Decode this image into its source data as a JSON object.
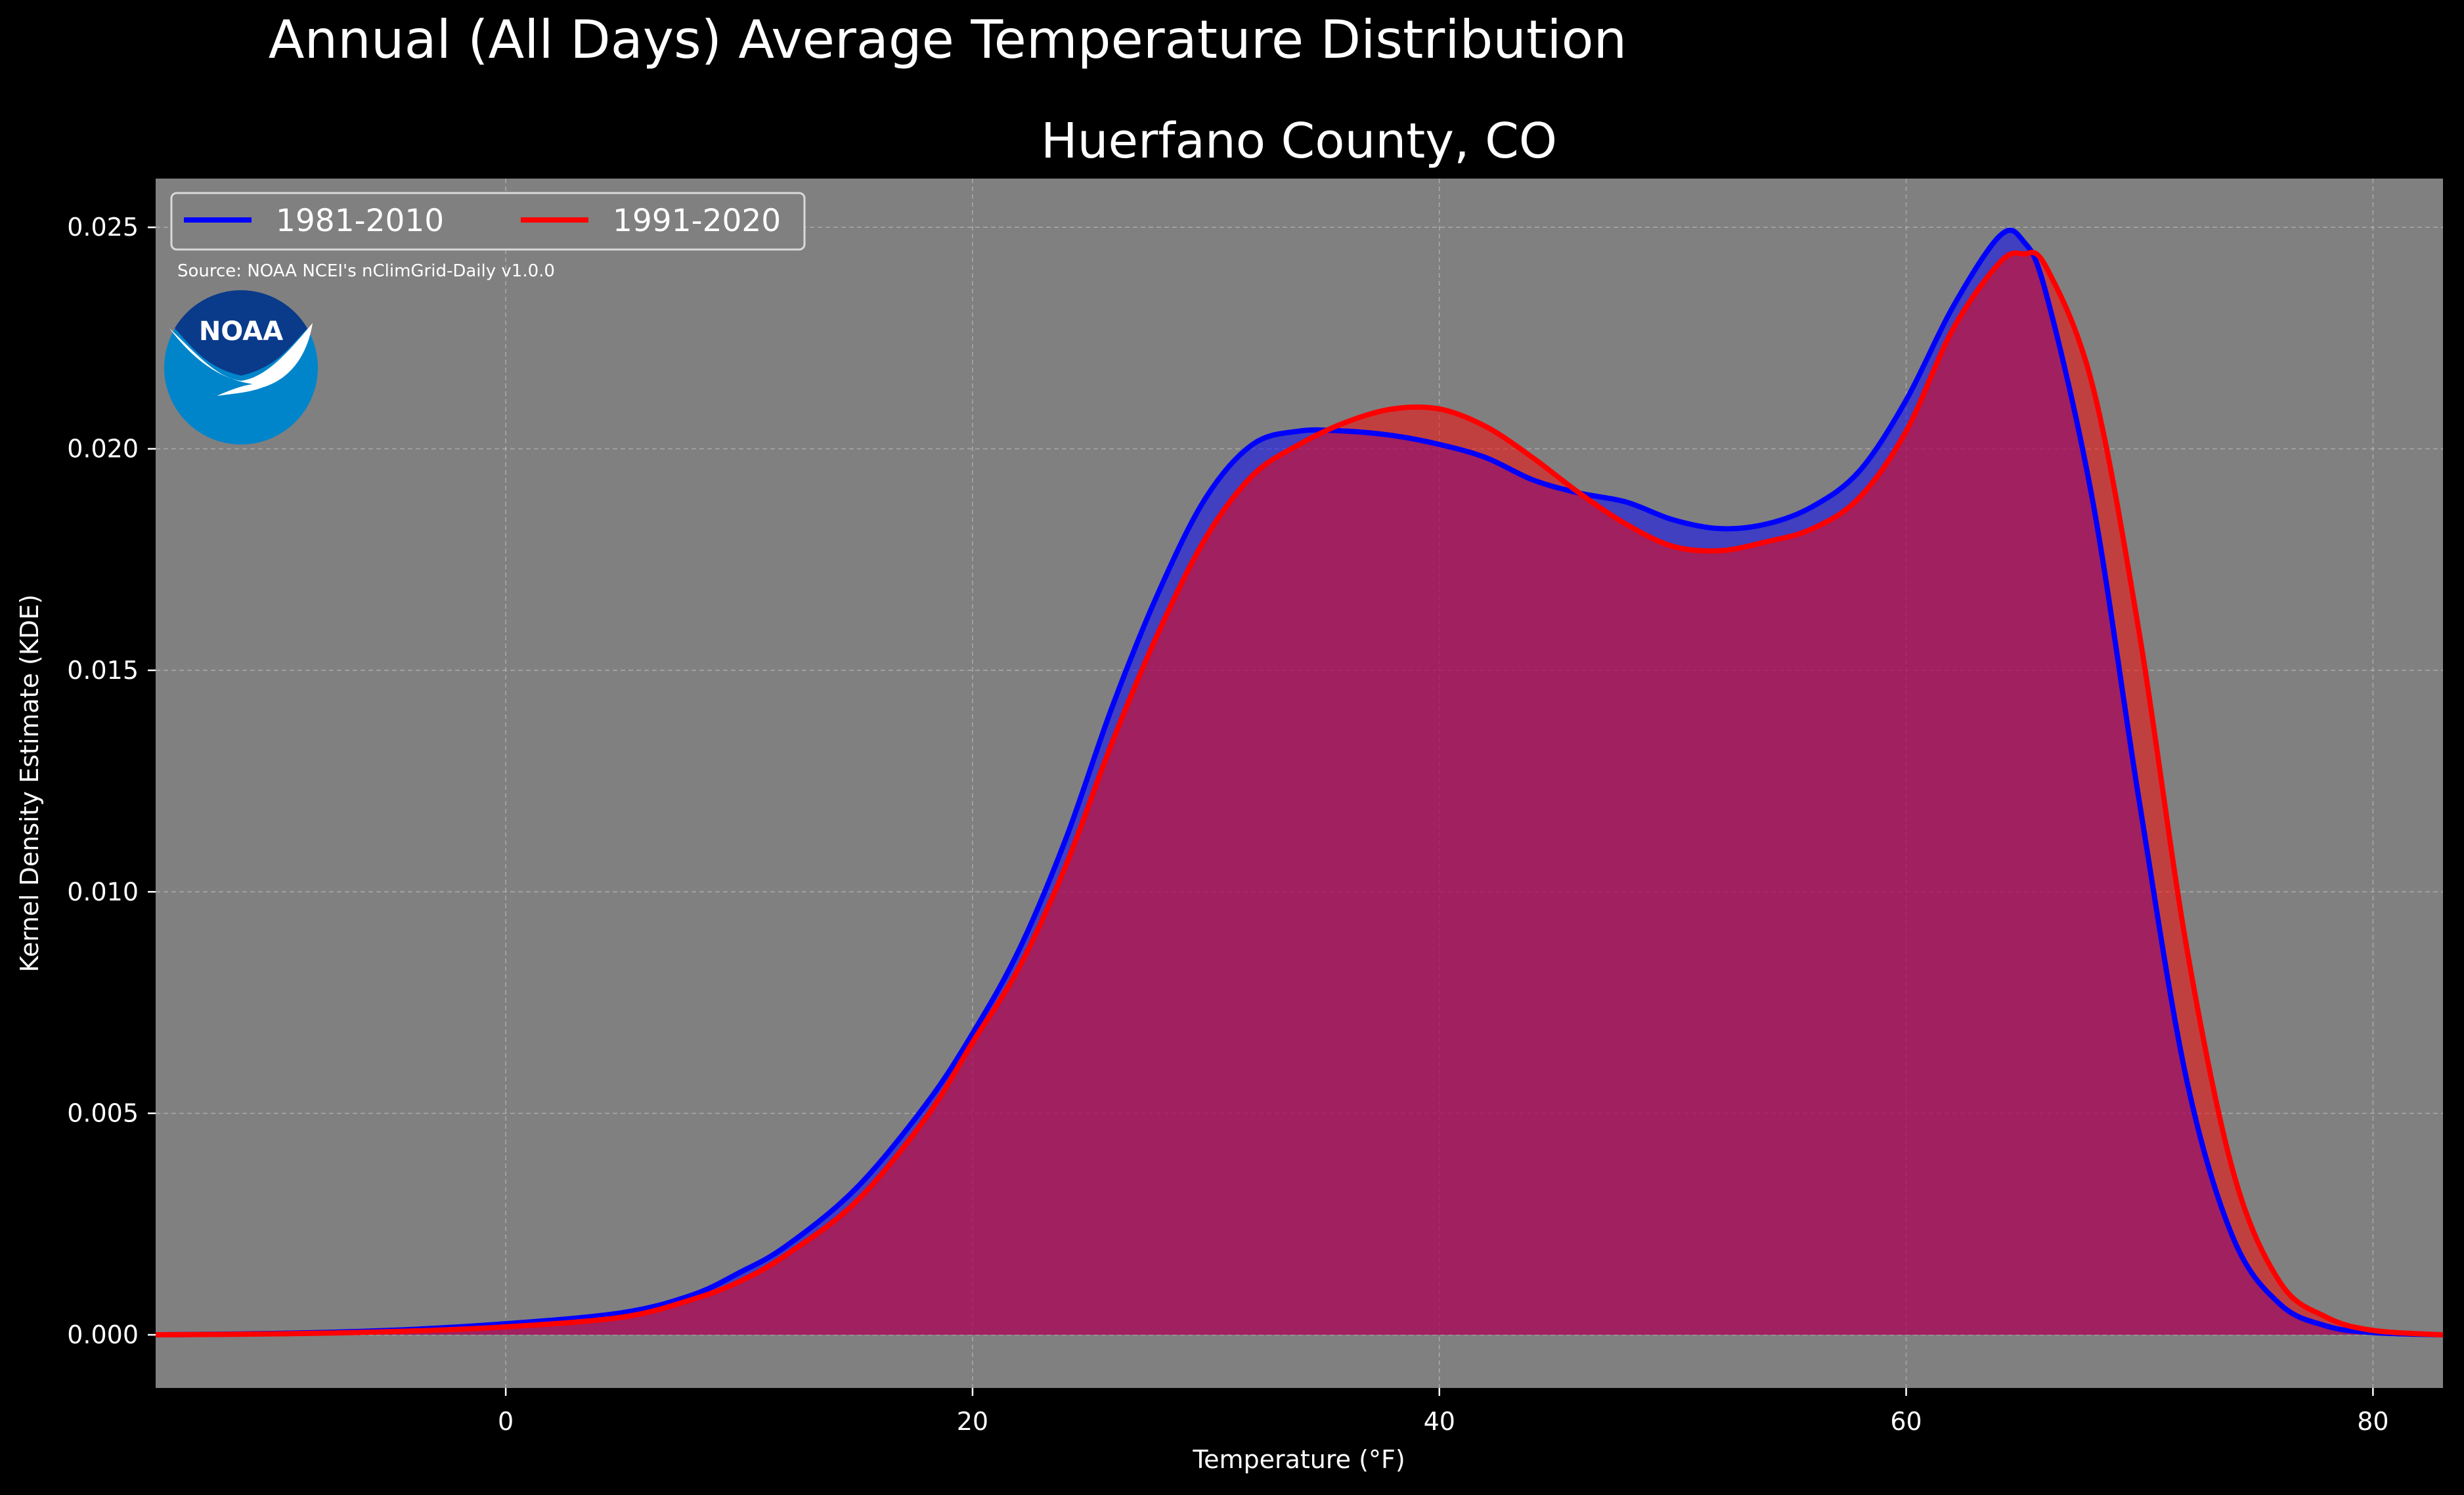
{
  "chart_data": {
    "type": "area",
    "title": "Annual (All Days) Average Temperature Distribution",
    "subtitle": "Huerfano County, CO",
    "xlabel": "Temperature ($^\\circ$F)",
    "xlabel_display": "Temperature (°F)",
    "ylabel": "Kernel Density Estimate (KDE)",
    "xlim": [
      -15,
      83
    ],
    "ylim": [
      -0.0012,
      0.0261
    ],
    "x_ticks": [
      0,
      20,
      40,
      60,
      80
    ],
    "x_tick_labels": [
      "0",
      "20",
      "40",
      "60",
      "80"
    ],
    "y_ticks": [
      0.0,
      0.005,
      0.01,
      0.015,
      0.02,
      0.025
    ],
    "y_tick_labels": [
      "0.000",
      "0.005",
      "0.010",
      "0.015",
      "0.020",
      "0.025"
    ],
    "grid": true,
    "legend_position": "top-left",
    "annotation": "Source: NOAA NCEI's nClimGrid-Daily v1.0.0",
    "logo_text": "NOAA",
    "colors": {
      "figure_background": "#000000",
      "plot_background": "#808080",
      "series_1981_2010": "#0000ff",
      "series_1991_2020": "#ff0000",
      "logo_dark": "#0a3a8a",
      "logo_light": "#0085ca"
    },
    "series": [
      {
        "name": "1981-2010",
        "color": "#0000ff",
        "x": [
          -15,
          -10,
          -5,
          0,
          5,
          8,
          10,
          12,
          15,
          18,
          20,
          22,
          24,
          26,
          28,
          30,
          32,
          34,
          36,
          38,
          40,
          42,
          44,
          46,
          48,
          50,
          52,
          54,
          56,
          58,
          60,
          62,
          64,
          65,
          66,
          68,
          70,
          72,
          74,
          76,
          78,
          80,
          83
        ],
        "y": [
          0.0,
          3e-05,
          0.0001,
          0.00025,
          0.0005,
          0.0009,
          0.0014,
          0.002,
          0.0033,
          0.0052,
          0.0068,
          0.0087,
          0.0112,
          0.0142,
          0.0168,
          0.0189,
          0.0201,
          0.0204,
          0.0204,
          0.0203,
          0.0201,
          0.0198,
          0.0193,
          0.019,
          0.0188,
          0.0184,
          0.0182,
          0.0183,
          0.0187,
          0.0195,
          0.0211,
          0.0232,
          0.0248,
          0.0247,
          0.0235,
          0.0188,
          0.012,
          0.0058,
          0.0022,
          0.0007,
          0.0002,
          5e-05,
          0.0
        ]
      },
      {
        "name": "1991-2020",
        "color": "#ff0000",
        "x": [
          -15,
          -10,
          -5,
          0,
          5,
          8,
          10,
          12,
          15,
          18,
          20,
          22,
          24,
          26,
          28,
          30,
          32,
          34,
          36,
          38,
          40,
          42,
          44,
          46,
          48,
          50,
          52,
          54,
          56,
          58,
          60,
          62,
          64,
          65,
          66,
          68,
          70,
          72,
          74,
          76,
          78,
          80,
          83
        ],
        "y": [
          0.0,
          2e-05,
          7e-05,
          0.00018,
          0.0004,
          0.0008,
          0.0012,
          0.0018,
          0.003,
          0.0049,
          0.0066,
          0.0083,
          0.0106,
          0.0134,
          0.0159,
          0.018,
          0.0194,
          0.0201,
          0.0206,
          0.0209,
          0.0209,
          0.0205,
          0.0198,
          0.019,
          0.0183,
          0.0178,
          0.0177,
          0.0179,
          0.0182,
          0.0189,
          0.0204,
          0.0227,
          0.0242,
          0.0244,
          0.0241,
          0.0214,
          0.0158,
          0.0088,
          0.0037,
          0.0012,
          0.0004,
          0.0001,
          0.0
        ]
      }
    ]
  }
}
